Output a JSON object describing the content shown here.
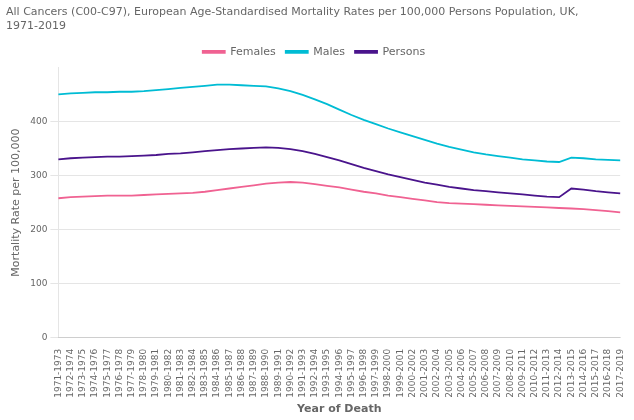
{
  "chart_data": {
    "type": "line",
    "title": [
      "All Cancers (C00-C97), European Age-Standardised Mortality Rates per 100,000 Persons Population, UK,",
      "1971-2019"
    ],
    "xlabel": "Year of Death",
    "ylabel": "Mortality Rate per 100,000",
    "categories": [
      "1971-1973",
      "1972-1974",
      "1973-1975",
      "1974-1976",
      "1975-1977",
      "1976-1978",
      "1977-1979",
      "1978-1980",
      "1979-1981",
      "1980-1982",
      "1981-1983",
      "1982-1984",
      "1983-1985",
      "1984-1986",
      "1985-1987",
      "1986-1988",
      "1987-1989",
      "1988-1990",
      "1989-1991",
      "1990-1992",
      "1991-1993",
      "1992-1994",
      "1993-1995",
      "1994-1996",
      "1995-1997",
      "1996-1998",
      "1997-1999",
      "1998-2000",
      "1999-2001",
      "2000-2002",
      "2001-2003",
      "2002-2004",
      "2003-2005",
      "2004-2006",
      "2005-2007",
      "2006-2008",
      "2007-2009",
      "2008-2010",
      "2009-2011",
      "2010-2012",
      "2011-2013",
      "2012-2014",
      "2013-2015",
      "2014-2016",
      "2015-2017",
      "2016-2018",
      "2017-2019"
    ],
    "series": [
      {
        "name": "Females",
        "color": "#f06292",
        "values": [
          258,
          260,
          261,
          262,
          263,
          263,
          263,
          264,
          265,
          266,
          267,
          268,
          270,
          273,
          276,
          279,
          282,
          285,
          287,
          288,
          287,
          284,
          281,
          278,
          274,
          270,
          267,
          263,
          260,
          257,
          254,
          251,
          249,
          248,
          247,
          246,
          245,
          244,
          243,
          242,
          241,
          240,
          239,
          238,
          236,
          234,
          232
        ]
      },
      {
        "name": "Males",
        "color": "#00bcd4",
        "values": [
          450,
          452,
          453,
          454,
          454,
          455,
          455,
          456,
          458,
          460,
          462,
          464,
          466,
          468,
          468,
          467,
          466,
          465,
          461,
          456,
          449,
          441,
          432,
          422,
          412,
          403,
          395,
          387,
          380,
          373,
          366,
          359,
          353,
          348,
          343,
          339,
          336,
          333,
          330,
          328,
          326,
          325,
          333,
          332,
          330,
          329,
          328
        ]
      },
      {
        "name": "Persons",
        "color": "#4a148c",
        "values": [
          330,
          332,
          333,
          334,
          335,
          335,
          336,
          337,
          338,
          340,
          341,
          343,
          345,
          347,
          349,
          350,
          351,
          352,
          351,
          349,
          345,
          340,
          334,
          328,
          321,
          314,
          308,
          302,
          297,
          292,
          287,
          283,
          279,
          276,
          273,
          271,
          269,
          267,
          265,
          263,
          261,
          260,
          276,
          274,
          271,
          269,
          267
        ]
      }
    ],
    "ylim": [
      0,
      500
    ],
    "yticks": [
      0,
      100,
      200,
      300,
      400
    ],
    "grid": true,
    "legend": "top"
  }
}
